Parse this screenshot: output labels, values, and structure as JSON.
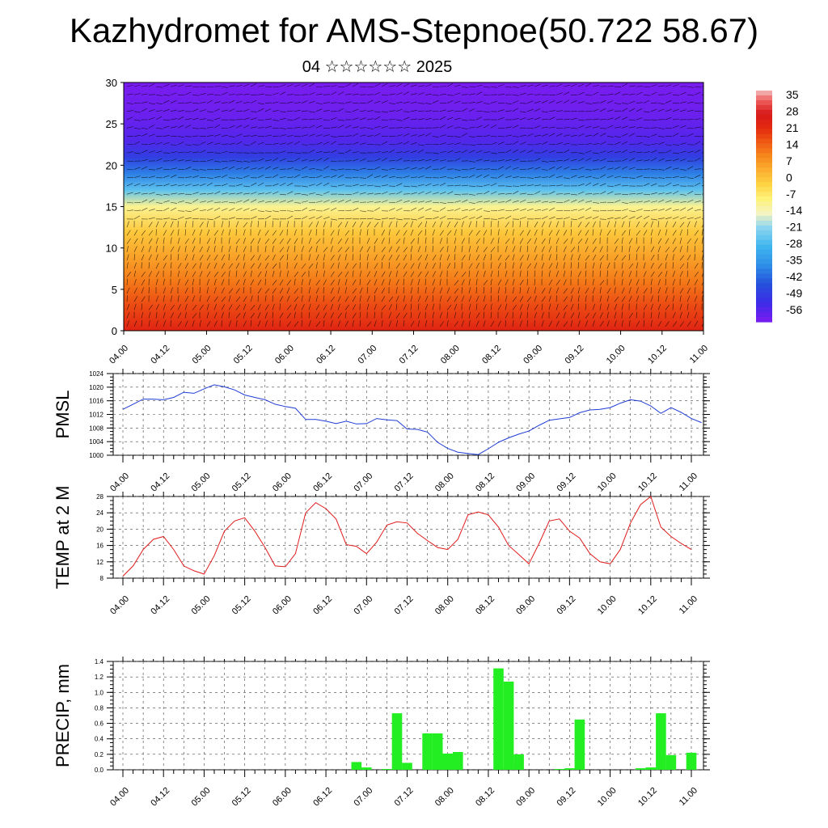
{
  "header": {
    "title": "Kazhydromet for AMS-Stepnoe(50.722 58.67)",
    "subtitle": "04 ☆☆☆☆☆☆ 2025"
  },
  "colors": {
    "pmsl_line": "#1f3cd6",
    "temp_line": "#e01b1b",
    "precip_bar": "#22ee22",
    "axis": "#000000",
    "grid": "#444444"
  },
  "chart_data": [
    {
      "id": "cross-section",
      "type": "heatmap",
      "title": "",
      "xlabel": "",
      "ylabel": "",
      "x_tick_labels": [
        "04.00",
        "04.12",
        "05.00",
        "05.12",
        "06.00",
        "06.12",
        "07.00",
        "07.12",
        "08.00",
        "08.12",
        "09.00",
        "09.12",
        "10.00",
        "10.12",
        "11.00"
      ],
      "ylim": [
        0,
        30
      ],
      "y_ticks": [
        0,
        5,
        10,
        15,
        20,
        25,
        30
      ],
      "colorbar_labels": [
        "35",
        "28",
        "21",
        "14",
        "7",
        "0",
        "-7",
        "-14",
        "-21",
        "-28",
        "-35",
        "-42",
        "-49",
        "-56"
      ],
      "colorbar_range": [
        -60,
        38
      ],
      "temperature_by_height": [
        {
          "z": 0,
          "t": 24
        },
        {
          "z": 3,
          "t": 18
        },
        {
          "z": 6,
          "t": 12
        },
        {
          "z": 9,
          "t": 6
        },
        {
          "z": 12,
          "t": 0
        },
        {
          "z": 15,
          "t": -10
        },
        {
          "z": 17,
          "t": -25
        },
        {
          "z": 19,
          "t": -38
        },
        {
          "z": 21,
          "t": -48
        },
        {
          "z": 23,
          "t": -55
        },
        {
          "z": 26,
          "t": -58
        },
        {
          "z": 30,
          "t": -60
        }
      ],
      "wind_barbs_overlay": true
    },
    {
      "id": "pmsl",
      "type": "line",
      "title": "",
      "ylabel": "PMSL",
      "x_tick_labels": [
        "04.00",
        "04.12",
        "05.00",
        "05.12",
        "06.00",
        "06.12",
        "07.00",
        "07.12",
        "08.00",
        "08.12",
        "09.00",
        "09.12",
        "10.00",
        "10.12",
        "11.00"
      ],
      "ylim": [
        1000,
        1024
      ],
      "y_ticks": [
        1000,
        1004,
        1008,
        1012,
        1016,
        1020,
        1024
      ],
      "grid": true,
      "series": [
        {
          "values": [
            1013.5,
            1015,
            1016.5,
            1016.5,
            1016.3,
            1017,
            1018.5,
            1018.2,
            1019.5,
            1020.7,
            1020.1,
            1019.2,
            1017.7,
            1017,
            1016.3,
            1015,
            1014.3,
            1013.8,
            1010.5,
            1010.5,
            1010,
            1009.3,
            1010,
            1009.2,
            1009.3,
            1010.8,
            1010.4,
            1010.2,
            1007.7,
            1007.6,
            1006.8,
            1003.8,
            1002,
            1000.9,
            1000.5,
            1000.2,
            1001.9,
            1003.8,
            1005.1,
            1006.2,
            1007.1,
            1008.8,
            1010.3,
            1010.7,
            1011.1,
            1012.5,
            1013.3,
            1013.5,
            1014,
            1015.3,
            1016.3,
            1015.9,
            1014.5,
            1012.3,
            1014,
            1012.6,
            1010.8,
            1009.6
          ]
        }
      ]
    },
    {
      "id": "temp2m",
      "type": "line",
      "title": "",
      "ylabel": "TEMP at 2 M",
      "x_tick_labels": [
        "04.00",
        "04.12",
        "05.00",
        "05.12",
        "06.00",
        "06.12",
        "07.00",
        "07.12",
        "08.00",
        "08.12",
        "09.00",
        "09.12",
        "10.00",
        "10.12",
        "11.00"
      ],
      "ylim": [
        8,
        28
      ],
      "y_ticks": [
        8,
        12,
        16,
        20,
        24,
        28
      ],
      "grid": true,
      "series": [
        {
          "values": [
            8.5,
            11,
            15,
            17.5,
            18.2,
            15,
            11,
            9.8,
            9,
            13.5,
            19.5,
            22,
            22.8,
            19.5,
            15.5,
            11,
            10.8,
            14,
            24,
            26.5,
            25,
            22.5,
            16.2,
            15.8,
            14,
            16.8,
            21,
            21.8,
            21.5,
            19,
            17.2,
            15.5,
            15,
            17.5,
            23.5,
            24.2,
            23.5,
            20.5,
            16,
            13.8,
            11.5,
            16.5,
            22,
            22.5,
            19.5,
            17.8,
            14,
            12,
            11.5,
            15,
            21.5,
            26,
            28,
            20.5,
            18.2,
            16.5,
            15
          ]
        }
      ]
    },
    {
      "id": "precip",
      "type": "bar",
      "title": "",
      "ylabel": "PRECIP, mm",
      "x_tick_labels": [
        "04.00",
        "04.12",
        "05.00",
        "05.12",
        "06.00",
        "06.12",
        "07.00",
        "07.12",
        "08.00",
        "08.12",
        "09.00",
        "09.12",
        "10.00",
        "10.12",
        "11.00"
      ],
      "ylim": [
        0,
        1.4
      ],
      "y_ticks": [
        0,
        0.2,
        0.4,
        0.6,
        0.8,
        1.0,
        1.2,
        1.4
      ],
      "grid": true,
      "bars": [
        {
          "x": 23.0,
          "value": 0.1
        },
        {
          "x": 24.0,
          "value": 0.03
        },
        {
          "x": 26.0,
          "value": 0.01
        },
        {
          "x": 27.0,
          "value": 0.73
        },
        {
          "x": 28.0,
          "value": 0.09
        },
        {
          "x": 30.0,
          "value": 0.47
        },
        {
          "x": 31.0,
          "value": 0.47
        },
        {
          "x": 32.0,
          "value": 0.21
        },
        {
          "x": 33.0,
          "value": 0.23
        },
        {
          "x": 37.0,
          "value": 1.31
        },
        {
          "x": 38.0,
          "value": 1.14
        },
        {
          "x": 39.0,
          "value": 0.2
        },
        {
          "x": 43.0,
          "value": 0.01
        },
        {
          "x": 44.0,
          "value": 0.02
        },
        {
          "x": 45.0,
          "value": 0.65
        },
        {
          "x": 51.0,
          "value": 0.02
        },
        {
          "x": 52.0,
          "value": 0.03
        },
        {
          "x": 53.0,
          "value": 0.73
        },
        {
          "x": 54.0,
          "value": 0.19
        },
        {
          "x": 56.0,
          "value": 0.22
        }
      ]
    }
  ]
}
